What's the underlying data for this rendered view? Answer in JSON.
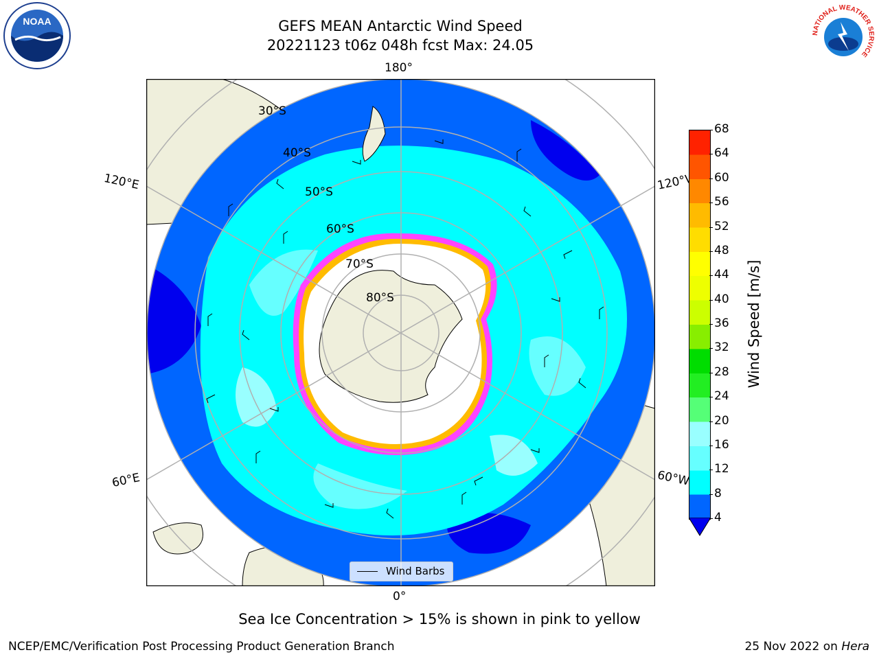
{
  "figure": {
    "title_line1": "GEFS MEAN Antarctic Wind Speed",
    "title_line2": "20221123 t06z 048h fcst   Max: 24.05",
    "caption": "Sea Ice Concentration > 15% is shown in pink to yellow",
    "footer_left": "NCEP/EMC/Verification Post Processing Product Generation Branch",
    "footer_right_date": "25 Nov 2022 on ",
    "footer_right_host": "Hera"
  },
  "logos": {
    "noaa_text": "NOAA",
    "nws_ring_text": "NATIONAL WEATHER SERVICE"
  },
  "map": {
    "projection": "south-polar-stereographic",
    "lon_labels": {
      "top": "180°",
      "bottom": "0°",
      "upper_left": "120°E",
      "lower_left": "60°E",
      "upper_right": "120°W",
      "lower_right": "60°W"
    },
    "lat_labels": [
      "30°S",
      "40°S",
      "50°S",
      "60°S",
      "70°S",
      "80°S"
    ],
    "legend_entry": "Wind Barbs"
  },
  "colorbar": {
    "label": "Wind Speed [m/s]",
    "ticks": [
      "4",
      "8",
      "12",
      "16",
      "20",
      "24",
      "28",
      "32",
      "36",
      "40",
      "44",
      "48",
      "52",
      "56",
      "60",
      "64",
      "68"
    ],
    "colors": [
      "#0066ff",
      "#00ffff",
      "#66ffff",
      "#99ffff",
      "#55ff77",
      "#22ee22",
      "#00dd00",
      "#88ee00",
      "#ccff00",
      "#eeff00",
      "#ffff00",
      "#ffdd00",
      "#ffbb00",
      "#ff8800",
      "#ff5500",
      "#ff2200",
      "#ff0000"
    ],
    "under_color": "#0000ee"
  }
}
